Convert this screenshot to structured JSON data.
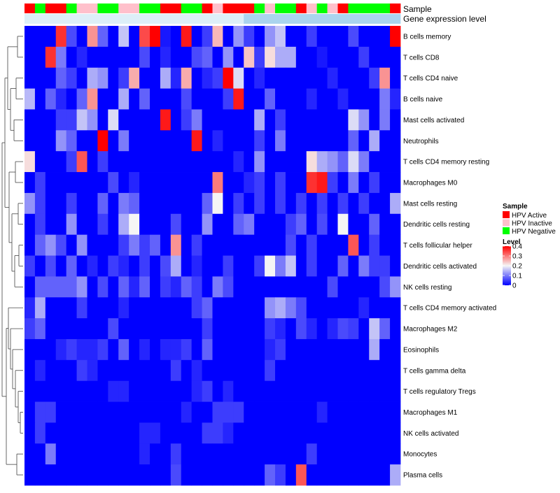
{
  "chart_data": {
    "type": "heatmap",
    "title": "",
    "annotations": {
      "sample_label": "Sample",
      "gene_label": "Gene expression level",
      "sample_groups": [
        "A",
        "N",
        "A",
        "A",
        "N",
        "I",
        "I",
        "N",
        "N",
        "I",
        "I",
        "N",
        "N",
        "A",
        "A",
        "N",
        "N",
        "A",
        "I",
        "A",
        "A",
        "A",
        "N",
        "I",
        "N",
        "N",
        "A",
        "I",
        "N",
        "I",
        "A",
        "N",
        "N",
        "N",
        "N",
        "A"
      ],
      "gene_shades": [
        "#ddeff8",
        "#ddeff8",
        "#ddeff8",
        "#ddeff8",
        "#ddeff8",
        "#ddeff8",
        "#ddeff8",
        "#ddeff8",
        "#ddeff8",
        "#ddeff8",
        "#ddeff8",
        "#ddeff8",
        "#ddeff8",
        "#ddeff8",
        "#ddeff8",
        "#ddeff8",
        "#ddeff8",
        "#ddeff8",
        "#ddeff8",
        "#ddeff8",
        "#ddeff8",
        "#aad4ee",
        "#aad4ee",
        "#aad4ee",
        "#aad4ee",
        "#aad4ee",
        "#aad4ee",
        "#aad4ee",
        "#aad4ee",
        "#aad4ee",
        "#aad4ee",
        "#aad4ee",
        "#aad4ee",
        "#aad4ee",
        "#aad4ee",
        "#aad4ee"
      ]
    },
    "rows": [
      "B cells memory",
      "T cells CD8",
      "T cells CD4 naive",
      "B cells naive",
      "Mast cells activated",
      "Neutrophils",
      "T cells CD4 memory resting",
      "Macrophages M0",
      "Mast cells resting",
      "Dendritic cells resting",
      "T cells follicular helper",
      "Dendritic cells activated",
      "NK cells resting",
      "T cells CD4 memory activated",
      "Macrophages M2",
      "Eosinophils",
      "T cells gamma delta",
      "T cells regulatory  Tregs",
      "Macrophages M1",
      "NK cells activated",
      "Monocytes",
      "Plasma cells"
    ],
    "values": [
      [
        0.0,
        0.0,
        0.0,
        0.36,
        0.06,
        0.0,
        0.28,
        0.08,
        0.0,
        0.16,
        0.0,
        0.34,
        0.4,
        0.02,
        0.0,
        0.38,
        0.0,
        0.05,
        0.25,
        0.0,
        0.12,
        0.05,
        0.0,
        0.12,
        0.16,
        0.0,
        0.0,
        0.05,
        0.0,
        0.0,
        0.0,
        0.06,
        0.0,
        0.0,
        0.0,
        0.4
      ],
      [
        0.0,
        0.0,
        0.36,
        0.1,
        0.0,
        0.03,
        0.0,
        0.0,
        0.0,
        0.0,
        0.0,
        0.06,
        0.0,
        0.03,
        0.0,
        0.0,
        0.06,
        0.08,
        0.0,
        0.12,
        0.0,
        0.24,
        0.05,
        0.22,
        0.14,
        0.14,
        0.0,
        0.0,
        0.02,
        0.0,
        0.0,
        0.0,
        0.05,
        0.0,
        0.0,
        0.0
      ],
      [
        0.0,
        0.0,
        0.0,
        0.08,
        0.05,
        0.0,
        0.14,
        0.12,
        0.0,
        0.05,
        0.26,
        0.0,
        0.0,
        0.14,
        0.03,
        0.26,
        0.0,
        0.03,
        0.05,
        0.4,
        0.18,
        0.0,
        0.03,
        0.0,
        0.0,
        0.0,
        0.0,
        0.0,
        0.0,
        0.03,
        0.0,
        0.0,
        0.0,
        0.05,
        0.28,
        0.0
      ],
      [
        0.15,
        0.0,
        0.08,
        0.03,
        0.0,
        0.08,
        0.28,
        0.0,
        0.0,
        0.14,
        0.0,
        0.08,
        0.0,
        0.0,
        0.0,
        0.06,
        0.0,
        0.0,
        0.0,
        0.05,
        0.38,
        0.0,
        0.0,
        0.08,
        0.0,
        0.0,
        0.0,
        0.03,
        0.0,
        0.0,
        0.03,
        0.0,
        0.0,
        0.0,
        0.1,
        0.03
      ],
      [
        0.0,
        0.0,
        0.0,
        0.05,
        0.05,
        0.16,
        0.12,
        0.0,
        0.18,
        0.0,
        0.0,
        0.0,
        0.0,
        0.38,
        0.0,
        0.05,
        0.1,
        0.0,
        0.0,
        0.0,
        0.0,
        0.0,
        0.14,
        0.0,
        0.05,
        0.0,
        0.0,
        0.0,
        0.0,
        0.0,
        0.0,
        0.18,
        0.12,
        0.0,
        0.1,
        0.0
      ],
      [
        0.0,
        0.0,
        0.0,
        0.12,
        0.08,
        0.0,
        0.0,
        0.4,
        0.0,
        0.1,
        0.0,
        0.0,
        0.0,
        0.0,
        0.0,
        0.0,
        0.38,
        0.0,
        0.03,
        0.0,
        0.0,
        0.0,
        0.05,
        0.0,
        0.1,
        0.0,
        0.0,
        0.0,
        0.0,
        0.0,
        0.0,
        0.08,
        0.0,
        0.14,
        0.0,
        0.0
      ],
      [
        0.22,
        0.0,
        0.0,
        0.0,
        0.05,
        0.33,
        0.0,
        0.05,
        0.0,
        0.0,
        0.0,
        0.0,
        0.0,
        0.0,
        0.0,
        0.0,
        0.0,
        0.0,
        0.0,
        0.0,
        0.03,
        0.0,
        0.12,
        0.0,
        0.0,
        0.0,
        0.0,
        0.22,
        0.14,
        0.12,
        0.08,
        0.18,
        0.1,
        0.0,
        0.0,
        0.0
      ],
      [
        0.0,
        0.05,
        0.0,
        0.0,
        0.0,
        0.0,
        0.0,
        0.0,
        0.06,
        0.0,
        0.03,
        0.0,
        0.0,
        0.0,
        0.0,
        0.0,
        0.0,
        0.0,
        0.3,
        0.0,
        0.0,
        0.03,
        0.05,
        0.0,
        0.05,
        0.0,
        0.0,
        0.36,
        0.38,
        0.05,
        0.0,
        0.1,
        0.0,
        0.05,
        0.0,
        0.0
      ],
      [
        0.12,
        0.05,
        0.0,
        0.0,
        0.05,
        0.0,
        0.0,
        0.08,
        0.0,
        0.1,
        0.08,
        0.0,
        0.0,
        0.0,
        0.0,
        0.0,
        0.0,
        0.08,
        0.2,
        0.0,
        0.05,
        0.0,
        0.05,
        0.0,
        0.05,
        0.0,
        0.05,
        0.0,
        0.05,
        0.0,
        0.05,
        0.0,
        0.05,
        0.0,
        0.0,
        0.14
      ],
      [
        0.0,
        0.05,
        0.0,
        0.0,
        0.12,
        0.0,
        0.0,
        0.05,
        0.0,
        0.14,
        0.2,
        0.0,
        0.0,
        0.0,
        0.06,
        0.0,
        0.0,
        0.12,
        0.0,
        0.0,
        0.08,
        0.1,
        0.0,
        0.0,
        0.0,
        0.05,
        0.08,
        0.0,
        0.06,
        0.0,
        0.2,
        0.0,
        0.0,
        0.08,
        0.0,
        0.0
      ],
      [
        0.0,
        0.08,
        0.12,
        0.06,
        0.0,
        0.12,
        0.0,
        0.0,
        0.0,
        0.05,
        0.1,
        0.05,
        0.08,
        0.0,
        0.28,
        0.0,
        0.05,
        0.0,
        0.0,
        0.0,
        0.0,
        0.0,
        0.0,
        0.0,
        0.0,
        0.06,
        0.0,
        0.05,
        0.0,
        0.0,
        0.0,
        0.33,
        0.0,
        0.05,
        0.0,
        0.0
      ],
      [
        0.05,
        0.0,
        0.06,
        0.0,
        0.08,
        0.0,
        0.03,
        0.0,
        0.05,
        0.03,
        0.0,
        0.05,
        0.0,
        0.06,
        0.14,
        0.0,
        0.03,
        0.0,
        0.0,
        0.05,
        0.0,
        0.0,
        0.05,
        0.2,
        0.1,
        0.16,
        0.0,
        0.05,
        0.0,
        0.0,
        0.08,
        0.0,
        0.1,
        0.05,
        0.05,
        0.0
      ],
      [
        0.0,
        0.08,
        0.08,
        0.08,
        0.08,
        0.12,
        0.0,
        0.06,
        0.0,
        0.08,
        0.03,
        0.08,
        0.0,
        0.05,
        0.03,
        0.08,
        0.05,
        0.0,
        0.1,
        0.06,
        0.0,
        0.0,
        0.0,
        0.0,
        0.0,
        0.0,
        0.0,
        0.0,
        0.0,
        0.06,
        0.0,
        0.0,
        0.0,
        0.0,
        0.06,
        0.12
      ],
      [
        0.03,
        0.14,
        0.0,
        0.0,
        0.0,
        0.05,
        0.0,
        0.0,
        0.0,
        0.03,
        0.0,
        0.0,
        0.0,
        0.0,
        0.0,
        0.0,
        0.05,
        0.08,
        0.0,
        0.0,
        0.0,
        0.0,
        0.0,
        0.12,
        0.14,
        0.1,
        0.06,
        0.0,
        0.0,
        0.0,
        0.0,
        0.0,
        0.03,
        0.0,
        0.0,
        0.0
      ],
      [
        0.05,
        0.08,
        0.0,
        0.0,
        0.0,
        0.0,
        0.0,
        0.0,
        0.06,
        0.0,
        0.0,
        0.0,
        0.0,
        0.0,
        0.0,
        0.0,
        0.0,
        0.05,
        0.0,
        0.0,
        0.0,
        0.0,
        0.0,
        0.05,
        0.03,
        0.0,
        0.06,
        0.03,
        0.0,
        0.03,
        0.06,
        0.05,
        0.0,
        0.16,
        0.08,
        0.0
      ],
      [
        0.0,
        0.0,
        0.0,
        0.03,
        0.05,
        0.03,
        0.03,
        0.05,
        0.0,
        0.08,
        0.0,
        0.03,
        0.0,
        0.03,
        0.03,
        0.05,
        0.0,
        0.08,
        0.0,
        0.0,
        0.0,
        0.0,
        0.0,
        0.03,
        0.05,
        0.0,
        0.0,
        0.0,
        0.0,
        0.0,
        0.0,
        0.0,
        0.0,
        0.14,
        0.0,
        0.0
      ],
      [
        0.0,
        0.03,
        0.0,
        0.0,
        0.0,
        0.05,
        0.03,
        0.0,
        0.0,
        0.0,
        0.0,
        0.0,
        0.0,
        0.0,
        0.05,
        0.0,
        0.03,
        0.0,
        0.0,
        0.0,
        0.0,
        0.0,
        0.0,
        0.05,
        0.0,
        0.0,
        0.0,
        0.0,
        0.0,
        0.0,
        0.0,
        0.0,
        0.0,
        0.0,
        0.0,
        0.0
      ],
      [
        0.0,
        0.0,
        0.0,
        0.0,
        0.0,
        0.0,
        0.0,
        0.0,
        0.03,
        0.03,
        0.0,
        0.0,
        0.0,
        0.0,
        0.0,
        0.0,
        0.03,
        0.05,
        0.0,
        0.03,
        0.0,
        0.0,
        0.0,
        0.0,
        0.0,
        0.0,
        0.0,
        0.0,
        0.0,
        0.0,
        0.0,
        0.0,
        0.0,
        0.0,
        0.0,
        0.0
      ],
      [
        0.0,
        0.05,
        0.05,
        0.0,
        0.0,
        0.0,
        0.0,
        0.0,
        0.0,
        0.0,
        0.0,
        0.0,
        0.0,
        0.0,
        0.0,
        0.03,
        0.0,
        0.0,
        0.05,
        0.05,
        0.05,
        0.0,
        0.0,
        0.0,
        0.0,
        0.0,
        0.0,
        0.0,
        0.03,
        0.0,
        0.0,
        0.0,
        0.0,
        0.0,
        0.0,
        0.0
      ],
      [
        0.0,
        0.05,
        0.0,
        0.0,
        0.0,
        0.0,
        0.0,
        0.0,
        0.0,
        0.0,
        0.0,
        0.03,
        0.03,
        0.0,
        0.0,
        0.0,
        0.0,
        0.05,
        0.05,
        0.03,
        0.0,
        0.0,
        0.0,
        0.0,
        0.0,
        0.0,
        0.0,
        0.0,
        0.0,
        0.0,
        0.0,
        0.0,
        0.0,
        0.0,
        0.0,
        0.0
      ],
      [
        0.0,
        0.0,
        0.1,
        0.0,
        0.0,
        0.0,
        0.0,
        0.0,
        0.0,
        0.0,
        0.0,
        0.03,
        0.0,
        0.0,
        0.05,
        0.0,
        0.0,
        0.0,
        0.0,
        0.0,
        0.0,
        0.0,
        0.0,
        0.0,
        0.0,
        0.0,
        0.0,
        0.05,
        0.0,
        0.0,
        0.0,
        0.0,
        0.0,
        0.0,
        0.0,
        0.0
      ],
      [
        0.0,
        0.0,
        0.0,
        0.0,
        0.0,
        0.0,
        0.0,
        0.0,
        0.0,
        0.0,
        0.0,
        0.0,
        0.0,
        0.0,
        0.06,
        0.0,
        0.0,
        0.0,
        0.0,
        0.0,
        0.0,
        0.0,
        0.0,
        0.08,
        0.05,
        0.0,
        0.33,
        0.0,
        0.0,
        0.0,
        0.0,
        0.0,
        0.0,
        0.0,
        0.0,
        0.14
      ]
    ],
    "value_range": [
      0,
      0.4
    ],
    "legend": {
      "sample_title": "Sample",
      "sample_entries": [
        {
          "name": "HPV Active",
          "color": "#ff0000"
        },
        {
          "name": "HPV Inactive",
          "color": "#ffc0cb"
        },
        {
          "name": "HPV Negative",
          "color": "#00ff00"
        }
      ],
      "level_title": "Level",
      "level_ticks": [
        "0.4",
        "0.3",
        "0.2",
        "0.1",
        "0"
      ],
      "level_tick_values": [
        0.4,
        0.3,
        0.2,
        0.1,
        0
      ]
    },
    "colors": {
      "low": "#0000ff",
      "mid": "#f5f5f5",
      "high": "#ff0000"
    },
    "legend_placement": "right",
    "dendrogram": "rows"
  }
}
